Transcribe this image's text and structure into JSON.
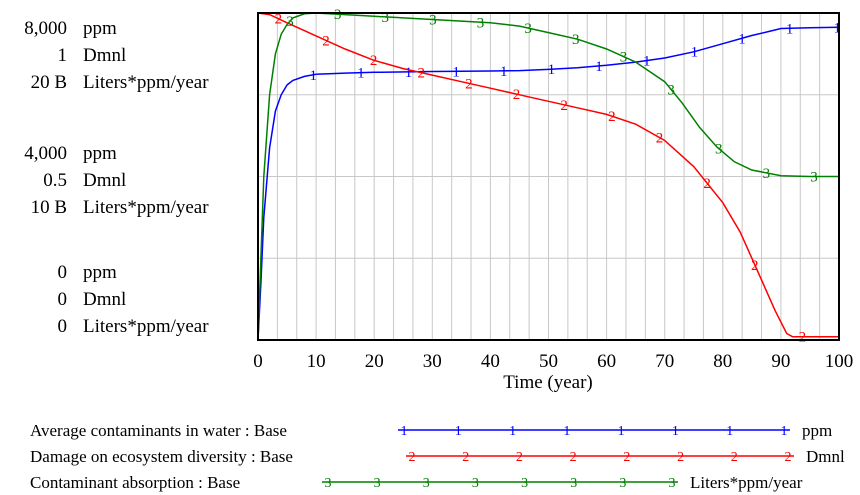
{
  "chart_data": {
    "type": "line",
    "xlabel": "Time (year)",
    "xlim": [
      0,
      100
    ],
    "x_ticks": [
      "0",
      "10",
      "20",
      "30",
      "40",
      "50",
      "60",
      "70",
      "80",
      "90",
      "100"
    ],
    "grid": true,
    "legend_placement": "bottom",
    "y_axes": [
      {
        "unit": "ppm",
        "ylim": [
          0,
          8000
        ],
        "tick_labels": [
          "0",
          "4,000",
          "8,000"
        ]
      },
      {
        "unit": "Dmnl",
        "ylim": [
          0,
          1
        ],
        "tick_labels": [
          "0",
          "0.5",
          "1"
        ]
      },
      {
        "unit": "Liters*ppm/year",
        "ylim": [
          0,
          20000000000
        ],
        "tick_labels": [
          "0",
          "10 B",
          "20 B"
        ]
      }
    ],
    "series": [
      {
        "name": "Average contaminants in water : Base",
        "marker": "1",
        "unit": "ppm",
        "color": "#0000ff",
        "x": [
          0,
          0.5,
          1,
          2,
          3,
          4,
          5,
          6,
          8,
          10,
          15,
          20,
          30,
          40,
          45,
          50,
          55,
          60,
          65,
          70,
          75,
          80,
          85,
          88,
          90,
          95,
          100
        ],
        "y": [
          0,
          1400,
          3000,
          4700,
          5600,
          6000,
          6240,
          6350,
          6450,
          6500,
          6530,
          6550,
          6570,
          6580,
          6590,
          6620,
          6660,
          6720,
          6800,
          6900,
          7050,
          7250,
          7450,
          7550,
          7620,
          7640,
          7650
        ]
      },
      {
        "name": "Damage on ecosystem diversity : Base",
        "marker": "2",
        "unit": "Dmnl",
        "color": "#ff0000",
        "x": [
          0,
          2,
          5,
          10,
          15,
          20,
          25,
          30,
          35,
          40,
          45,
          50,
          55,
          60,
          65,
          70,
          75,
          80,
          83,
          86,
          89,
          91,
          92,
          95,
          100
        ],
        "y": [
          1.0,
          0.995,
          0.97,
          0.93,
          0.89,
          0.855,
          0.83,
          0.81,
          0.79,
          0.77,
          0.75,
          0.73,
          0.71,
          0.69,
          0.66,
          0.61,
          0.53,
          0.42,
          0.33,
          0.21,
          0.09,
          0.02,
          0.01,
          0.01,
          0.01
        ]
      },
      {
        "name": "Contaminant absorption : Base",
        "marker": "3",
        "unit": "Liters*ppm/year",
        "color": "#008000",
        "x": [
          0,
          0.5,
          1,
          2,
          3,
          4,
          5,
          6,
          8,
          10,
          15,
          20,
          30,
          40,
          45,
          50,
          55,
          60,
          65,
          70,
          73,
          76,
          79,
          82,
          85,
          90,
          95,
          100
        ],
        "y": [
          0,
          5000000000,
          10000000000,
          15000000000,
          17500000000,
          18700000000,
          19300000000,
          19700000000,
          19950000000,
          20000000000,
          19900000000,
          19800000000,
          19600000000,
          19400000000,
          19200000000,
          18800000000,
          18400000000,
          17800000000,
          17000000000,
          15800000000,
          14500000000,
          13000000000,
          11800000000,
          10900000000,
          10400000000,
          10050000000,
          10000000000,
          10000000000
        ]
      }
    ]
  }
}
